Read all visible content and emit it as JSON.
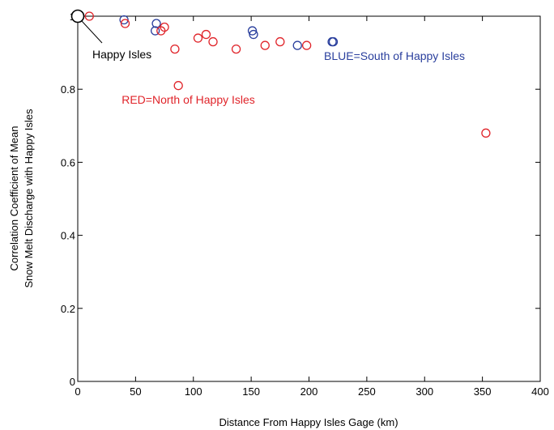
{
  "chart_data": {
    "type": "scatter",
    "xlabel": "Distance From Happy Isles Gage (km)",
    "ylabel_lines": [
      "Correlation Coefficient of Mean",
      "Snow Melt Discharge with Happy Isles"
    ],
    "xlim": [
      0,
      400
    ],
    "ylim": [
      0,
      1
    ],
    "x_ticks": [
      0,
      50,
      100,
      150,
      200,
      250,
      300,
      350,
      400
    ],
    "y_ticks": [
      0,
      0.2,
      0.4,
      0.6,
      0.8,
      1
    ],
    "x_tick_labels": [
      "0",
      "50",
      "100",
      "150",
      "200",
      "250",
      "300",
      "350",
      "400"
    ],
    "y_tick_labels": [
      "0",
      "0.2",
      "0.4",
      "0.6",
      "0.8",
      "1"
    ],
    "grid": false,
    "reference_point": {
      "x": 0,
      "y": 1,
      "color": "#000000",
      "label": "Happy Isles"
    },
    "series": [
      {
        "color": "#2a3f9d",
        "points": [
          {
            "x": 40,
            "y": 0.99
          },
          {
            "x": 68,
            "y": 0.98
          },
          {
            "x": 67,
            "y": 0.96
          },
          {
            "x": 151,
            "y": 0.96
          },
          {
            "x": 152,
            "y": 0.95
          },
          {
            "x": 190,
            "y": 0.92
          },
          {
            "x": 220,
            "y": 0.93
          },
          {
            "x": 221,
            "y": 0.93
          }
        ]
      },
      {
        "color": "#e0242a",
        "points": [
          {
            "x": 10,
            "y": 1.0
          },
          {
            "x": 41,
            "y": 0.98
          },
          {
            "x": 72,
            "y": 0.96
          },
          {
            "x": 75,
            "y": 0.97
          },
          {
            "x": 84,
            "y": 0.91
          },
          {
            "x": 87,
            "y": 0.81
          },
          {
            "x": 104,
            "y": 0.94
          },
          {
            "x": 111,
            "y": 0.95
          },
          {
            "x": 117,
            "y": 0.93
          },
          {
            "x": 137,
            "y": 0.91
          },
          {
            "x": 162,
            "y": 0.92
          },
          {
            "x": 175,
            "y": 0.93
          },
          {
            "x": 198,
            "y": 0.92
          },
          {
            "x": 353,
            "y": 0.68
          }
        ]
      }
    ],
    "annotations": [
      {
        "text": "RED=North of Happy Isles",
        "color": "#e0242a",
        "x": 38,
        "y": 0.76
      },
      {
        "text": "BLUE=South of Happy Isles",
        "color": "#2a3f9d",
        "x": 213,
        "y": 0.88
      }
    ]
  }
}
